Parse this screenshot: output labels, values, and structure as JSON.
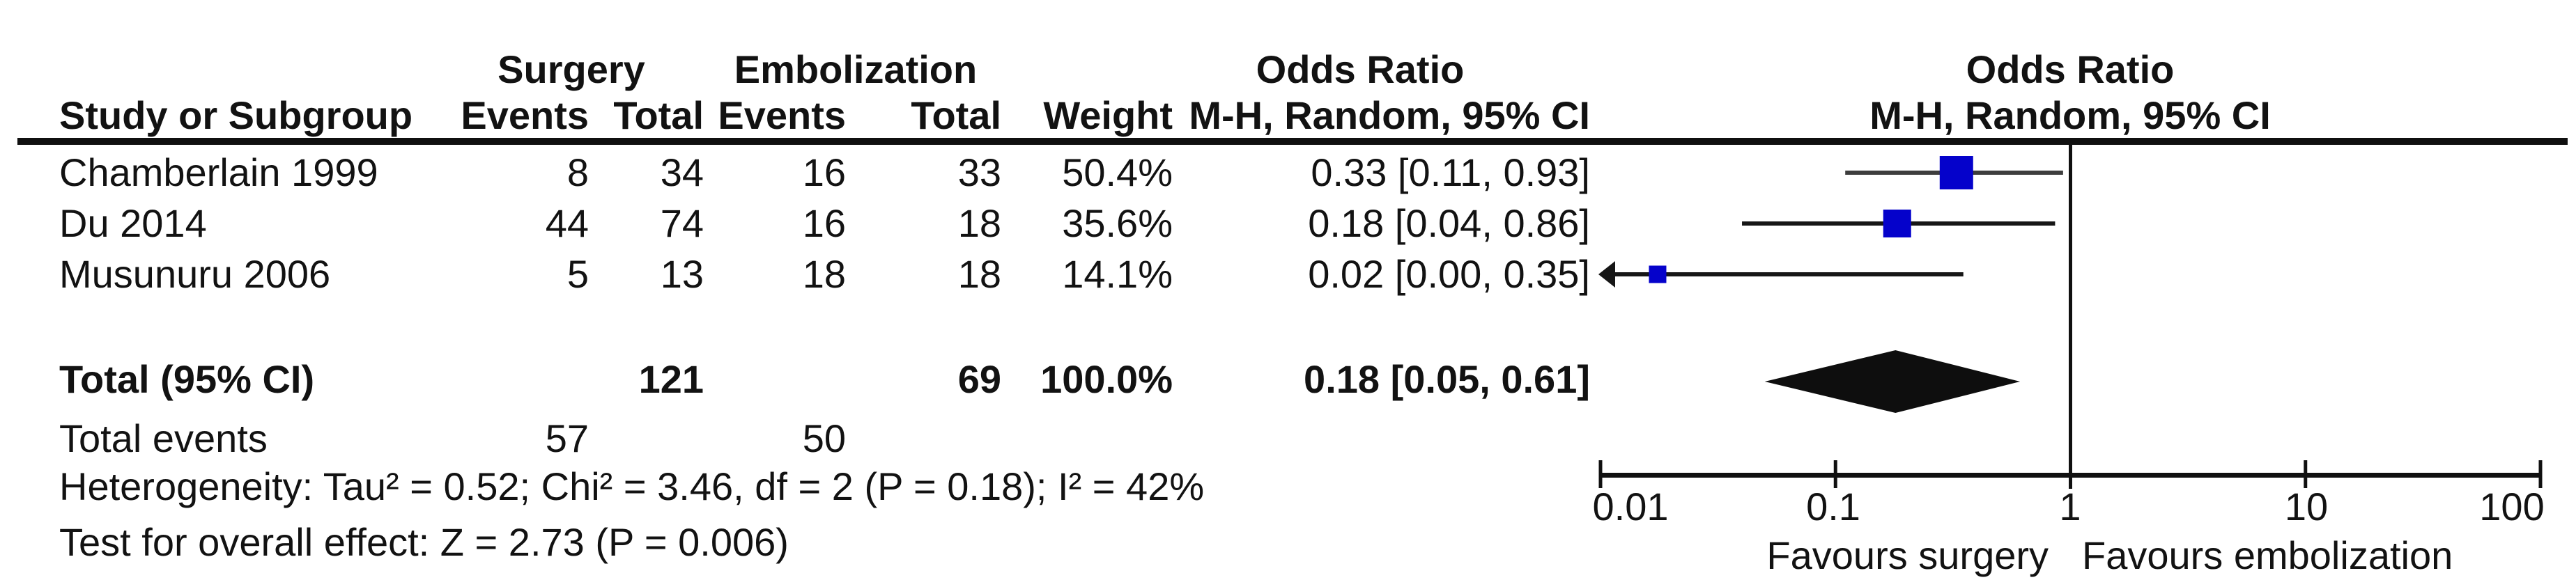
{
  "headers": {
    "group_surgery": "Surgery",
    "group_embolization": "Embolization",
    "group_odds_ratio": "Odds Ratio",
    "study": "Study or Subgroup",
    "events": "Events",
    "total": "Total",
    "weight": "Weight",
    "mh_random_ci": "M-H, Random, 95% CI",
    "plot_title": "Odds Ratio",
    "plot_subtitle": "M-H, Random, 95% CI"
  },
  "chart_data": {
    "type": "scatter",
    "subtype": "forest_plot",
    "effect_measure": "Odds Ratio",
    "method": "M-H, Random, 95% CI",
    "x_scale": "log",
    "axis": {
      "min": 0.01,
      "max": 100,
      "ticks": [
        "0.01",
        "0.1",
        "1",
        "10",
        "100"
      ],
      "tick_values": [
        0.01,
        0.1,
        1,
        10,
        100
      ],
      "favours_left": "Favours surgery",
      "favours_right": "Favours embolization"
    },
    "studies": [
      {
        "name": "Chamberlain 1999",
        "surgery_events": 8,
        "surgery_total": 34,
        "embolization_events": 16,
        "embolization_total": 33,
        "weight": "50.4%",
        "weight_pct": 50.4,
        "or_ci_label": "0.33 [0.11, 0.93]",
        "or": 0.33,
        "ci_low": 0.11,
        "ci_high": 0.93,
        "plot_or": 0.327,
        "arrow_low": false
      },
      {
        "name": "Du 2014",
        "surgery_events": 44,
        "surgery_total": 74,
        "embolization_events": 16,
        "embolization_total": 18,
        "weight": "35.6%",
        "weight_pct": 35.6,
        "or_ci_label": "0.18 [0.04, 0.86]",
        "or": 0.18,
        "ci_low": 0.04,
        "ci_high": 0.86,
        "plot_or": 0.183,
        "arrow_low": false
      },
      {
        "name": "Musunuru 2006",
        "surgery_events": 5,
        "surgery_total": 13,
        "embolization_events": 18,
        "embolization_total": 18,
        "weight": "14.1%",
        "weight_pct": 14.1,
        "or_ci_label": "0.02 [0.00, 0.35]",
        "or": 0.02,
        "ci_low": 0.0,
        "ci_high": 0.35,
        "plot_or": 0.0175,
        "arrow_low": true
      }
    ],
    "total": {
      "label": "Total (95% CI)",
      "surgery_total": 121,
      "embolization_total": 69,
      "weight": "100.0%",
      "or_ci_label": "0.18 [0.05, 0.61]",
      "or": 0.18,
      "ci_low": 0.05,
      "ci_high": 0.61
    },
    "total_events": {
      "label": "Total events",
      "surgery": 57,
      "embolization": 50
    },
    "heterogeneity": "Heterogeneity: Tau² = 0.52; Chi² = 3.46, df = 2 (P = 0.18); I² = 42%",
    "overall_effect": "Test for overall effect: Z = 2.73 (P = 0.006)"
  },
  "colors": {
    "marker_blue": "#0502CB",
    "diamond": "#0e0e0e",
    "line": "#101010",
    "ci_row1": "#3d3d3d",
    "ci_row": "#161616",
    "text": "#121212"
  }
}
